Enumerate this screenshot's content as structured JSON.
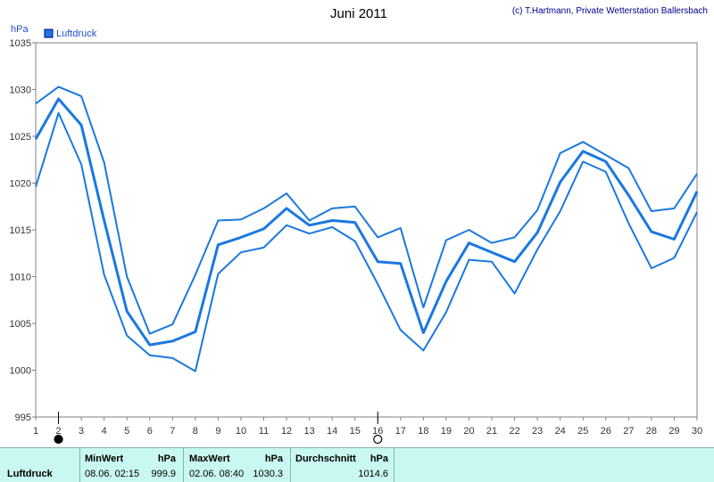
{
  "chart_data": {
    "type": "line",
    "title": "Juni 2011",
    "credit": "(c) T.Hartmann, Private Wetterstation Ballersbach",
    "ylabel": "hPa",
    "ylim": [
      995,
      1035
    ],
    "yticks": [
      995,
      1000,
      1005,
      1010,
      1015,
      1020,
      1025,
      1030,
      1035
    ],
    "xlim": [
      1,
      30
    ],
    "x": [
      1,
      2,
      3,
      4,
      5,
      6,
      7,
      8,
      9,
      10,
      11,
      12,
      13,
      14,
      15,
      16,
      17,
      18,
      19,
      20,
      21,
      22,
      23,
      24,
      25,
      26,
      27,
      28,
      29,
      30
    ],
    "legend": "Luftdruck",
    "grid": false,
    "color": "#1a78e0",
    "series": [
      {
        "kind": "max",
        "values": [
          1028.5,
          1030.3,
          1029.3,
          1022.2,
          1010.0,
          1003.9,
          1004.9,
          1010.2,
          1016.0,
          1016.1,
          1017.3,
          1018.9,
          1016.0,
          1017.3,
          1017.5,
          1014.2,
          1015.2,
          1006.7,
          1013.9,
          1015.0,
          1013.6,
          1014.2,
          1017.1,
          1023.2,
          1024.4,
          1023.0,
          1021.6,
          1017.0,
          1017.3,
          1021.0
        ]
      },
      {
        "kind": "mean",
        "values": [
          1024.7,
          1029.0,
          1026.2,
          1016.0,
          1006.3,
          1002.7,
          1003.1,
          1004.1,
          1013.4,
          1014.2,
          1015.1,
          1017.3,
          1015.5,
          1016.0,
          1015.8,
          1011.6,
          1011.4,
          1004.0,
          1009.5,
          1013.6,
          1012.6,
          1011.6,
          1014.7,
          1020.1,
          1023.4,
          1022.3,
          1018.7,
          1014.8,
          1014.0,
          1019.1
        ]
      },
      {
        "kind": "min",
        "values": [
          1019.6,
          1027.5,
          1022.0,
          1010.2,
          1003.7,
          1001.6,
          1001.3,
          999.9,
          1010.3,
          1012.6,
          1013.1,
          1015.5,
          1014.6,
          1015.3,
          1013.8,
          1009.2,
          1004.3,
          1002.1,
          1006.2,
          1011.8,
          1011.6,
          1008.2,
          1012.9,
          1017.0,
          1022.3,
          1021.2,
          1015.7,
          1010.9,
          1012.0,
          1016.9
        ]
      }
    ],
    "markers": [
      {
        "x": 2,
        "symbol": "filled-circle"
      },
      {
        "x": 16,
        "symbol": "open-circle"
      }
    ]
  },
  "stats": {
    "row_label": "Luftdruck",
    "min": {
      "header": "MinWert",
      "unit": "hPa",
      "when": "08.06.  02:15",
      "value": "999.9"
    },
    "max": {
      "header": "MaxWert",
      "unit": "hPa",
      "when": "02.06.  08:40",
      "value": "1030.3"
    },
    "avg": {
      "header": "Durchschnitt",
      "unit": "hPa",
      "value": "1014.6"
    }
  }
}
